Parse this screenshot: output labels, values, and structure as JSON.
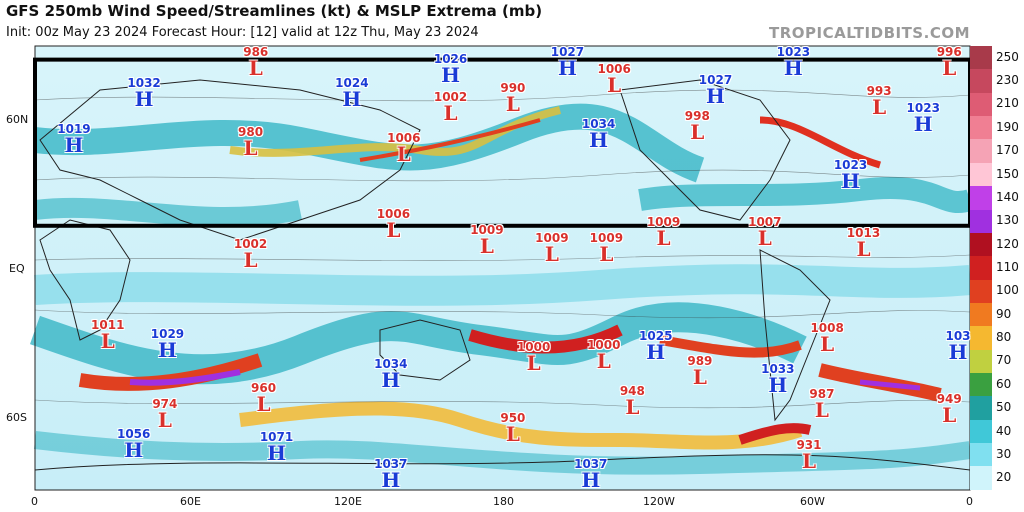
{
  "header": {
    "title": "GFS 250mb Wind Speed/Streamlines (kt) & MSLP Extrema (mb)",
    "subtitle": "Init: 00z May 23 2024   Forecast Hour: [12]   valid at 12z Thu, May 23 2024",
    "site": "TROPICALTIDBITS.COM"
  },
  "axes": {
    "lat_labels": [
      "60N",
      "EQ",
      "60S"
    ],
    "lon_labels": [
      "0",
      "60E",
      "120E",
      "180",
      "120W",
      "60W",
      "0"
    ]
  },
  "colorbar": {
    "ticks": [
      "250",
      "230",
      "210",
      "190",
      "170",
      "150",
      "140",
      "130",
      "120",
      "110",
      "100",
      "90",
      "80",
      "70",
      "60",
      "50",
      "40",
      "30",
      "20"
    ],
    "colors": [
      "#a83a4a",
      "#c6485e",
      "#de5c74",
      "#f07f93",
      "#f5a3b5",
      "#ffc6d6",
      "#c040e8",
      "#a030e0",
      "#b01020",
      "#d02020",
      "#e04020",
      "#f07a20",
      "#f5b830",
      "#c0d040",
      "#3aa040",
      "#20a0a0",
      "#40c8d8",
      "#80e0f0",
      "#d0f4fb"
    ]
  },
  "pressure_systems": [
    {
      "type": "L",
      "value": "986",
      "lon": 85,
      "lat": 76
    },
    {
      "type": "H",
      "value": "1026",
      "lon": 160,
      "lat": 69
    },
    {
      "type": "H",
      "value": "1027",
      "lon": 205,
      "lat": 75
    },
    {
      "type": "H",
      "value": "1023",
      "lon": 292,
      "lat": 76
    },
    {
      "type": "L",
      "value": "996",
      "lon": 352,
      "lat": 72
    },
    {
      "type": "H",
      "value": "1032",
      "lon": 42,
      "lat": 60
    },
    {
      "type": "H",
      "value": "1024",
      "lon": 122,
      "lat": 60
    },
    {
      "type": "L",
      "value": "1002",
      "lon": 160,
      "lat": 55
    },
    {
      "type": "L",
      "value": "990",
      "lon": 184,
      "lat": 58
    },
    {
      "type": "L",
      "value": "1006",
      "lon": 223,
      "lat": 65
    },
    {
      "type": "H",
      "value": "1027",
      "lon": 262,
      "lat": 61
    },
    {
      "type": "L",
      "value": "993",
      "lon": 325,
      "lat": 57
    },
    {
      "type": "H",
      "value": "1023",
      "lon": 342,
      "lat": 51
    },
    {
      "type": "H",
      "value": "1019",
      "lon": 15,
      "lat": 43
    },
    {
      "type": "L",
      "value": "980",
      "lon": 83,
      "lat": 42
    },
    {
      "type": "L",
      "value": "1006",
      "lon": 142,
      "lat": 40
    },
    {
      "type": "H",
      "value": "1034",
      "lon": 217,
      "lat": 45
    },
    {
      "type": "L",
      "value": "998",
      "lon": 255,
      "lat": 48
    },
    {
      "type": "H",
      "value": "1023",
      "lon": 314,
      "lat": 30
    },
    {
      "type": "L",
      "value": "1006",
      "lon": 138,
      "lat": 12
    },
    {
      "type": "L",
      "value": "1009",
      "lon": 174,
      "lat": 6
    },
    {
      "type": "L",
      "value": "1002",
      "lon": 83,
      "lat": 1
    },
    {
      "type": "L",
      "value": "1009",
      "lon": 199,
      "lat": 3
    },
    {
      "type": "L",
      "value": "1009",
      "lon": 220,
      "lat": 3
    },
    {
      "type": "L",
      "value": "1009",
      "lon": 242,
      "lat": 9
    },
    {
      "type": "L",
      "value": "1007",
      "lon": 281,
      "lat": 9
    },
    {
      "type": "L",
      "value": "1013",
      "lon": 319,
      "lat": 5
    },
    {
      "type": "L",
      "value": "1011",
      "lon": 28,
      "lat": -29
    },
    {
      "type": "H",
      "value": "1029",
      "lon": 51,
      "lat": -32
    },
    {
      "type": "L",
      "value": "1000",
      "lon": 192,
      "lat": -37
    },
    {
      "type": "L",
      "value": "1000",
      "lon": 219,
      "lat": -36
    },
    {
      "type": "H",
      "value": "1025",
      "lon": 239,
      "lat": -33
    },
    {
      "type": "L",
      "value": "1008",
      "lon": 305,
      "lat": -30
    },
    {
      "type": "H",
      "value": "103",
      "lon": 357,
      "lat": -33
    },
    {
      "type": "H",
      "value": "1034",
      "lon": 137,
      "lat": -43
    },
    {
      "type": "L",
      "value": "989",
      "lon": 256,
      "lat": -42
    },
    {
      "type": "H",
      "value": "1033",
      "lon": 286,
      "lat": -45
    },
    {
      "type": "L",
      "value": "960",
      "lon": 88,
      "lat": -52
    },
    {
      "type": "L",
      "value": "974",
      "lon": 50,
      "lat": -58
    },
    {
      "type": "L",
      "value": "948",
      "lon": 230,
      "lat": -53
    },
    {
      "type": "L",
      "value": "987",
      "lon": 303,
      "lat": -54
    },
    {
      "type": "L",
      "value": "949",
      "lon": 352,
      "lat": -56
    },
    {
      "type": "L",
      "value": "950",
      "lon": 184,
      "lat": -63
    },
    {
      "type": "H",
      "value": "1056",
      "lon": 38,
      "lat": -69
    },
    {
      "type": "H",
      "value": "1071",
      "lon": 93,
      "lat": -70
    },
    {
      "type": "L",
      "value": "931",
      "lon": 298,
      "lat": -73
    },
    {
      "type": "H",
      "value": "1037",
      "lon": 137,
      "lat": -80
    },
    {
      "type": "H",
      "value": "1037",
      "lon": 214,
      "lat": -80
    }
  ],
  "highlight_box": {
    "lon_min": 0,
    "lon_max": 360,
    "lat_min": 12,
    "lat_max": 73
  }
}
